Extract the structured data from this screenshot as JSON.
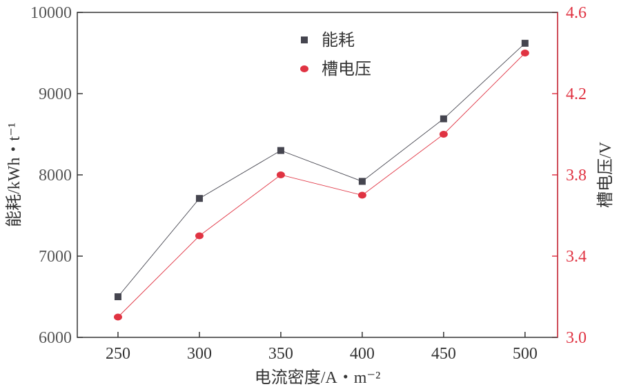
{
  "chart_data": {
    "type": "line",
    "xlabel": "电流密度/A・m⁻²",
    "ylabel_left": "能耗/kWh・t⁻¹",
    "ylabel_right": "槽电压/V",
    "x": [
      250,
      300,
      350,
      400,
      450,
      500
    ],
    "x_ticks": [
      "250",
      "300",
      "350",
      "400",
      "450",
      "500"
    ],
    "y_left_ticks": [
      "6000",
      "7000",
      "8000",
      "9000",
      "10000"
    ],
    "y_right_ticks": [
      "3.0",
      "3.4",
      "3.8",
      "4.2",
      "4.6"
    ],
    "xlim": [
      225,
      520
    ],
    "ylim_left": [
      6000,
      10000
    ],
    "ylim_right": [
      3.0,
      4.6
    ],
    "legend_position": "top-center",
    "series": [
      {
        "name": "能耗",
        "axis": "left",
        "color": "#45454f",
        "marker": "square",
        "values": [
          6500,
          7710,
          8300,
          7920,
          8690,
          9620
        ]
      },
      {
        "name": "槽电压",
        "axis": "right",
        "color": "#e03342",
        "marker": "circle",
        "values": [
          3.1,
          3.5,
          3.8,
          3.7,
          4.0,
          4.4
        ]
      }
    ]
  }
}
